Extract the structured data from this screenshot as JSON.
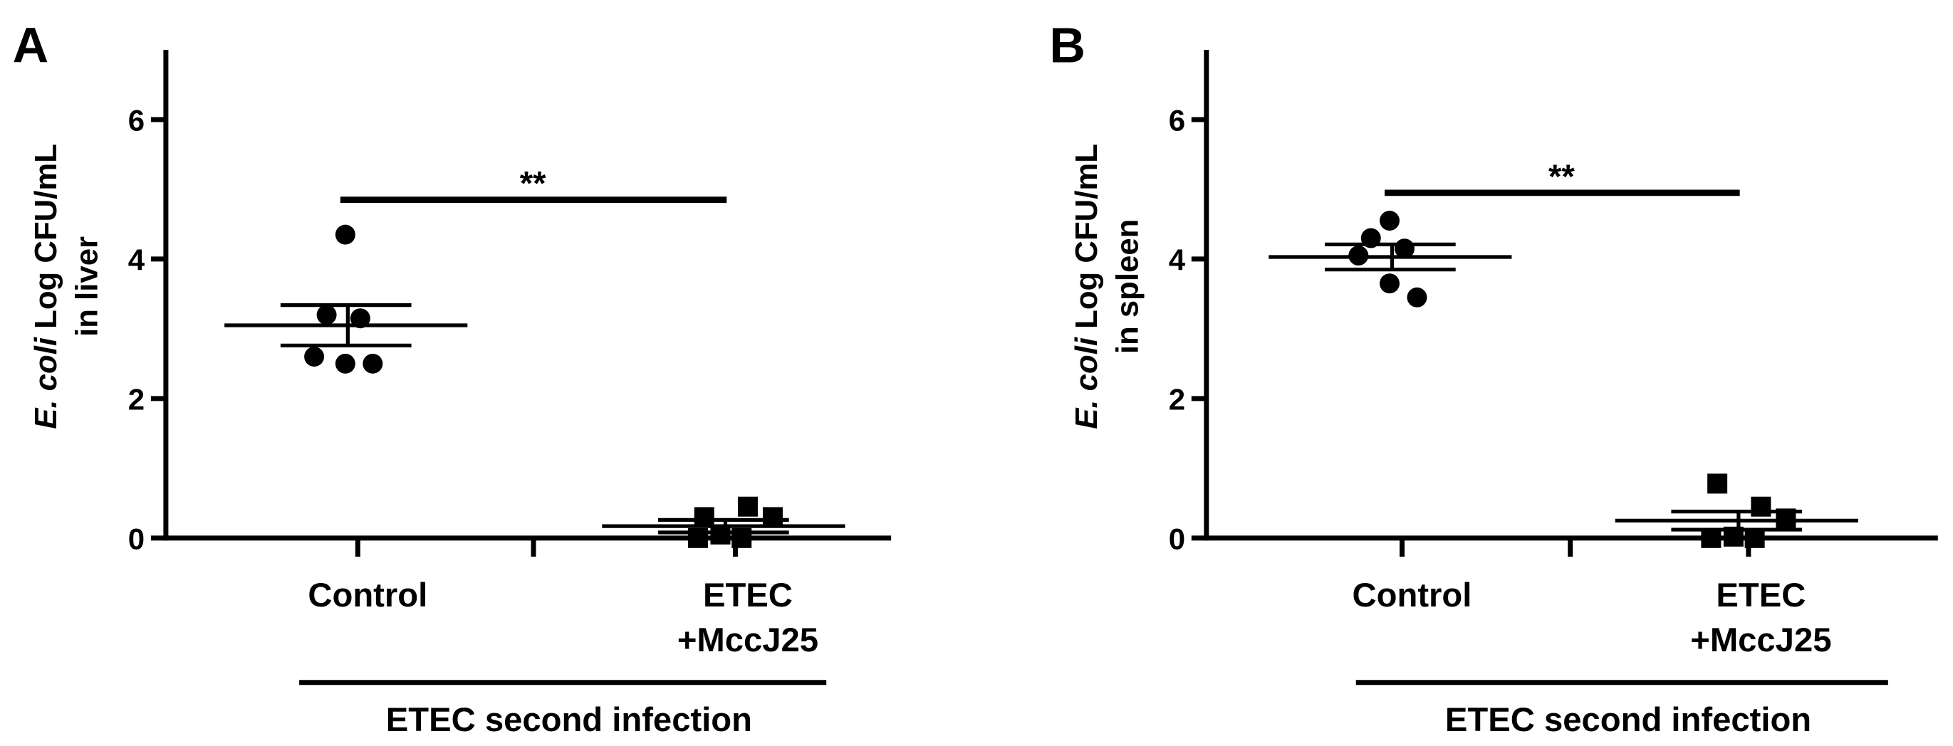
{
  "chart_data": [
    {
      "type": "dot",
      "panel_label": "A",
      "ylabel_italic": "E. coli",
      "ylabel": "Log CFU/mL",
      "ylabel_line2": "in liver",
      "categories": [
        [
          "Control"
        ],
        [
          "ETEC",
          "+MccJ25"
        ]
      ],
      "groups": [
        {
          "marker": "circle",
          "values": [
            4.35,
            3.2,
            3.15,
            2.6,
            2.5,
            2.5
          ],
          "mean": 3.05,
          "sem": 0.29
        },
        {
          "marker": "square",
          "values": [
            0.3,
            0.45,
            0.3,
            0.05,
            0.0,
            0.0
          ],
          "mean": 0.17,
          "sem": 0.09
        }
      ],
      "significance": {
        "label": "**",
        "y": 4.85
      },
      "group_label": "ETEC second infection",
      "ylim": [
        0,
        7
      ],
      "yticks": [
        0,
        2,
        4,
        6
      ],
      "color": "#000000"
    },
    {
      "type": "dot",
      "panel_label": "B",
      "ylabel_italic": "E. coli",
      "ylabel": "Log CFU/mL",
      "ylabel_line2": "in spleen",
      "categories": [
        [
          "Control"
        ],
        [
          "ETEC",
          "+MccJ25"
        ]
      ],
      "groups": [
        {
          "marker": "circle",
          "values": [
            4.55,
            4.3,
            4.15,
            4.05,
            3.65,
            3.45
          ],
          "mean": 4.03,
          "sem": 0.18
        },
        {
          "marker": "square",
          "values": [
            0.78,
            0.45,
            0.28,
            0.02,
            0.0,
            0.0
          ],
          "mean": 0.25,
          "sem": 0.13
        }
      ],
      "significance": {
        "label": "**",
        "y": 4.95
      },
      "group_label": "ETEC second infection",
      "ylim": [
        0,
        7
      ],
      "yticks": [
        0,
        2,
        4,
        6
      ],
      "color": "#000000"
    }
  ]
}
